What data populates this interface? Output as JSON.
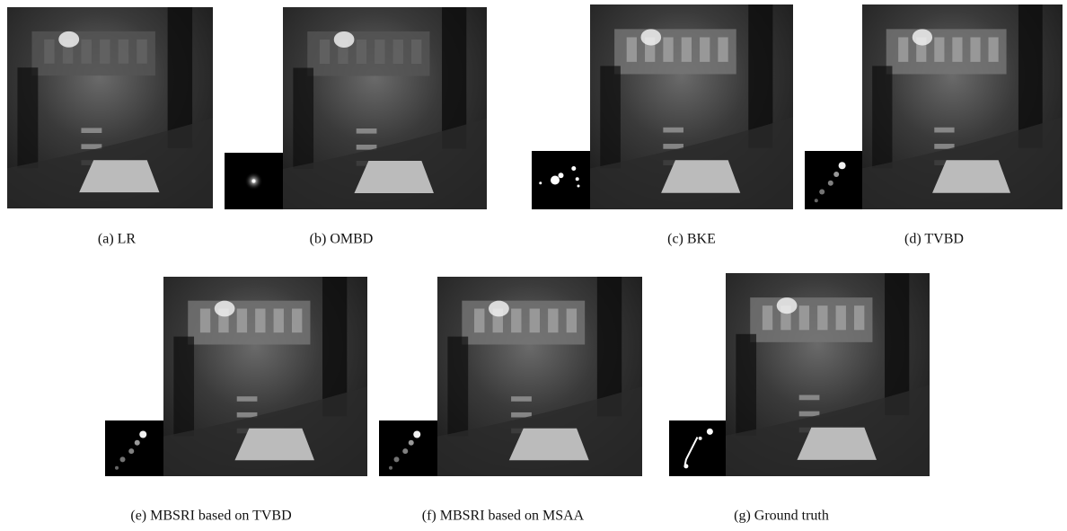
{
  "figure": {
    "panels": [
      {
        "caption": "(a) LR"
      },
      {
        "caption": "(b) OMBD"
      },
      {
        "caption": "(c) BKE"
      },
      {
        "caption": "(d) TVBD"
      },
      {
        "caption": "(e) MBSRI based on TVBD"
      },
      {
        "caption": "(f) MBSRI based on MSAA"
      },
      {
        "caption": "(g) Ground truth"
      }
    ]
  }
}
